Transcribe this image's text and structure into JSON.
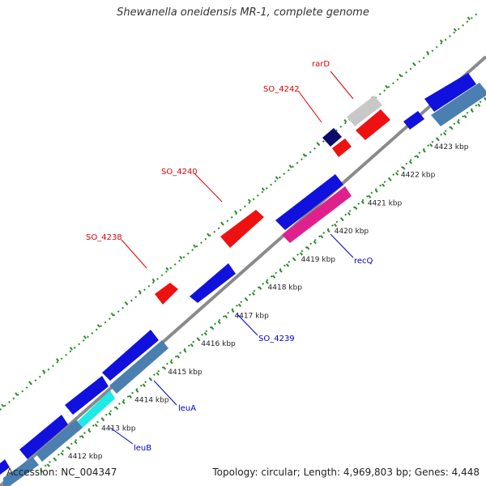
{
  "title": "Shewanella oneidensis MR-1, complete genome",
  "footer": {
    "accession": "Accession: NC_004347",
    "summary": "Topology: circular; Length: 4,969,803 bp; Genes: 4,448"
  },
  "colors": {
    "backbone": "#8a8a8a",
    "ruler": "#2a8a2a",
    "gene_forward": "#ee1111",
    "gene_reverse": "#1111dd",
    "gene_navy": "#0a0a6a",
    "gene_grey": "#c8c8c8",
    "gene_steel": "#4a7fb0",
    "gene_magenta": "#e0208c",
    "gene_cyan": "#1ee8e8",
    "label_forward": "#dd0000",
    "label_reverse": "#0000cc"
  },
  "ticks": [
    {
      "label": "4412 kbp"
    },
    {
      "label": "4413 kbp"
    },
    {
      "label": "4414 kbp"
    },
    {
      "label": "4415 kbp"
    },
    {
      "label": "4416 kbp"
    },
    {
      "label": "4417 kbp"
    },
    {
      "label": "4418 kbp"
    },
    {
      "label": "4419 kbp"
    },
    {
      "label": "4420 kbp"
    },
    {
      "label": "4421 kbp"
    },
    {
      "label": "4422 kbp"
    },
    {
      "label": "4423 kbp"
    }
  ],
  "gene_labels": [
    {
      "text": "rarD",
      "strand": "forward"
    },
    {
      "text": "SO_4242",
      "strand": "forward"
    },
    {
      "text": "SO_4240",
      "strand": "forward"
    },
    {
      "text": "SO_4238",
      "strand": "forward"
    },
    {
      "text": "recQ",
      "strand": "reverse"
    },
    {
      "text": "SO_4239",
      "strand": "reverse"
    },
    {
      "text": "leuA",
      "strand": "reverse"
    },
    {
      "text": "leuB",
      "strand": "reverse"
    }
  ]
}
